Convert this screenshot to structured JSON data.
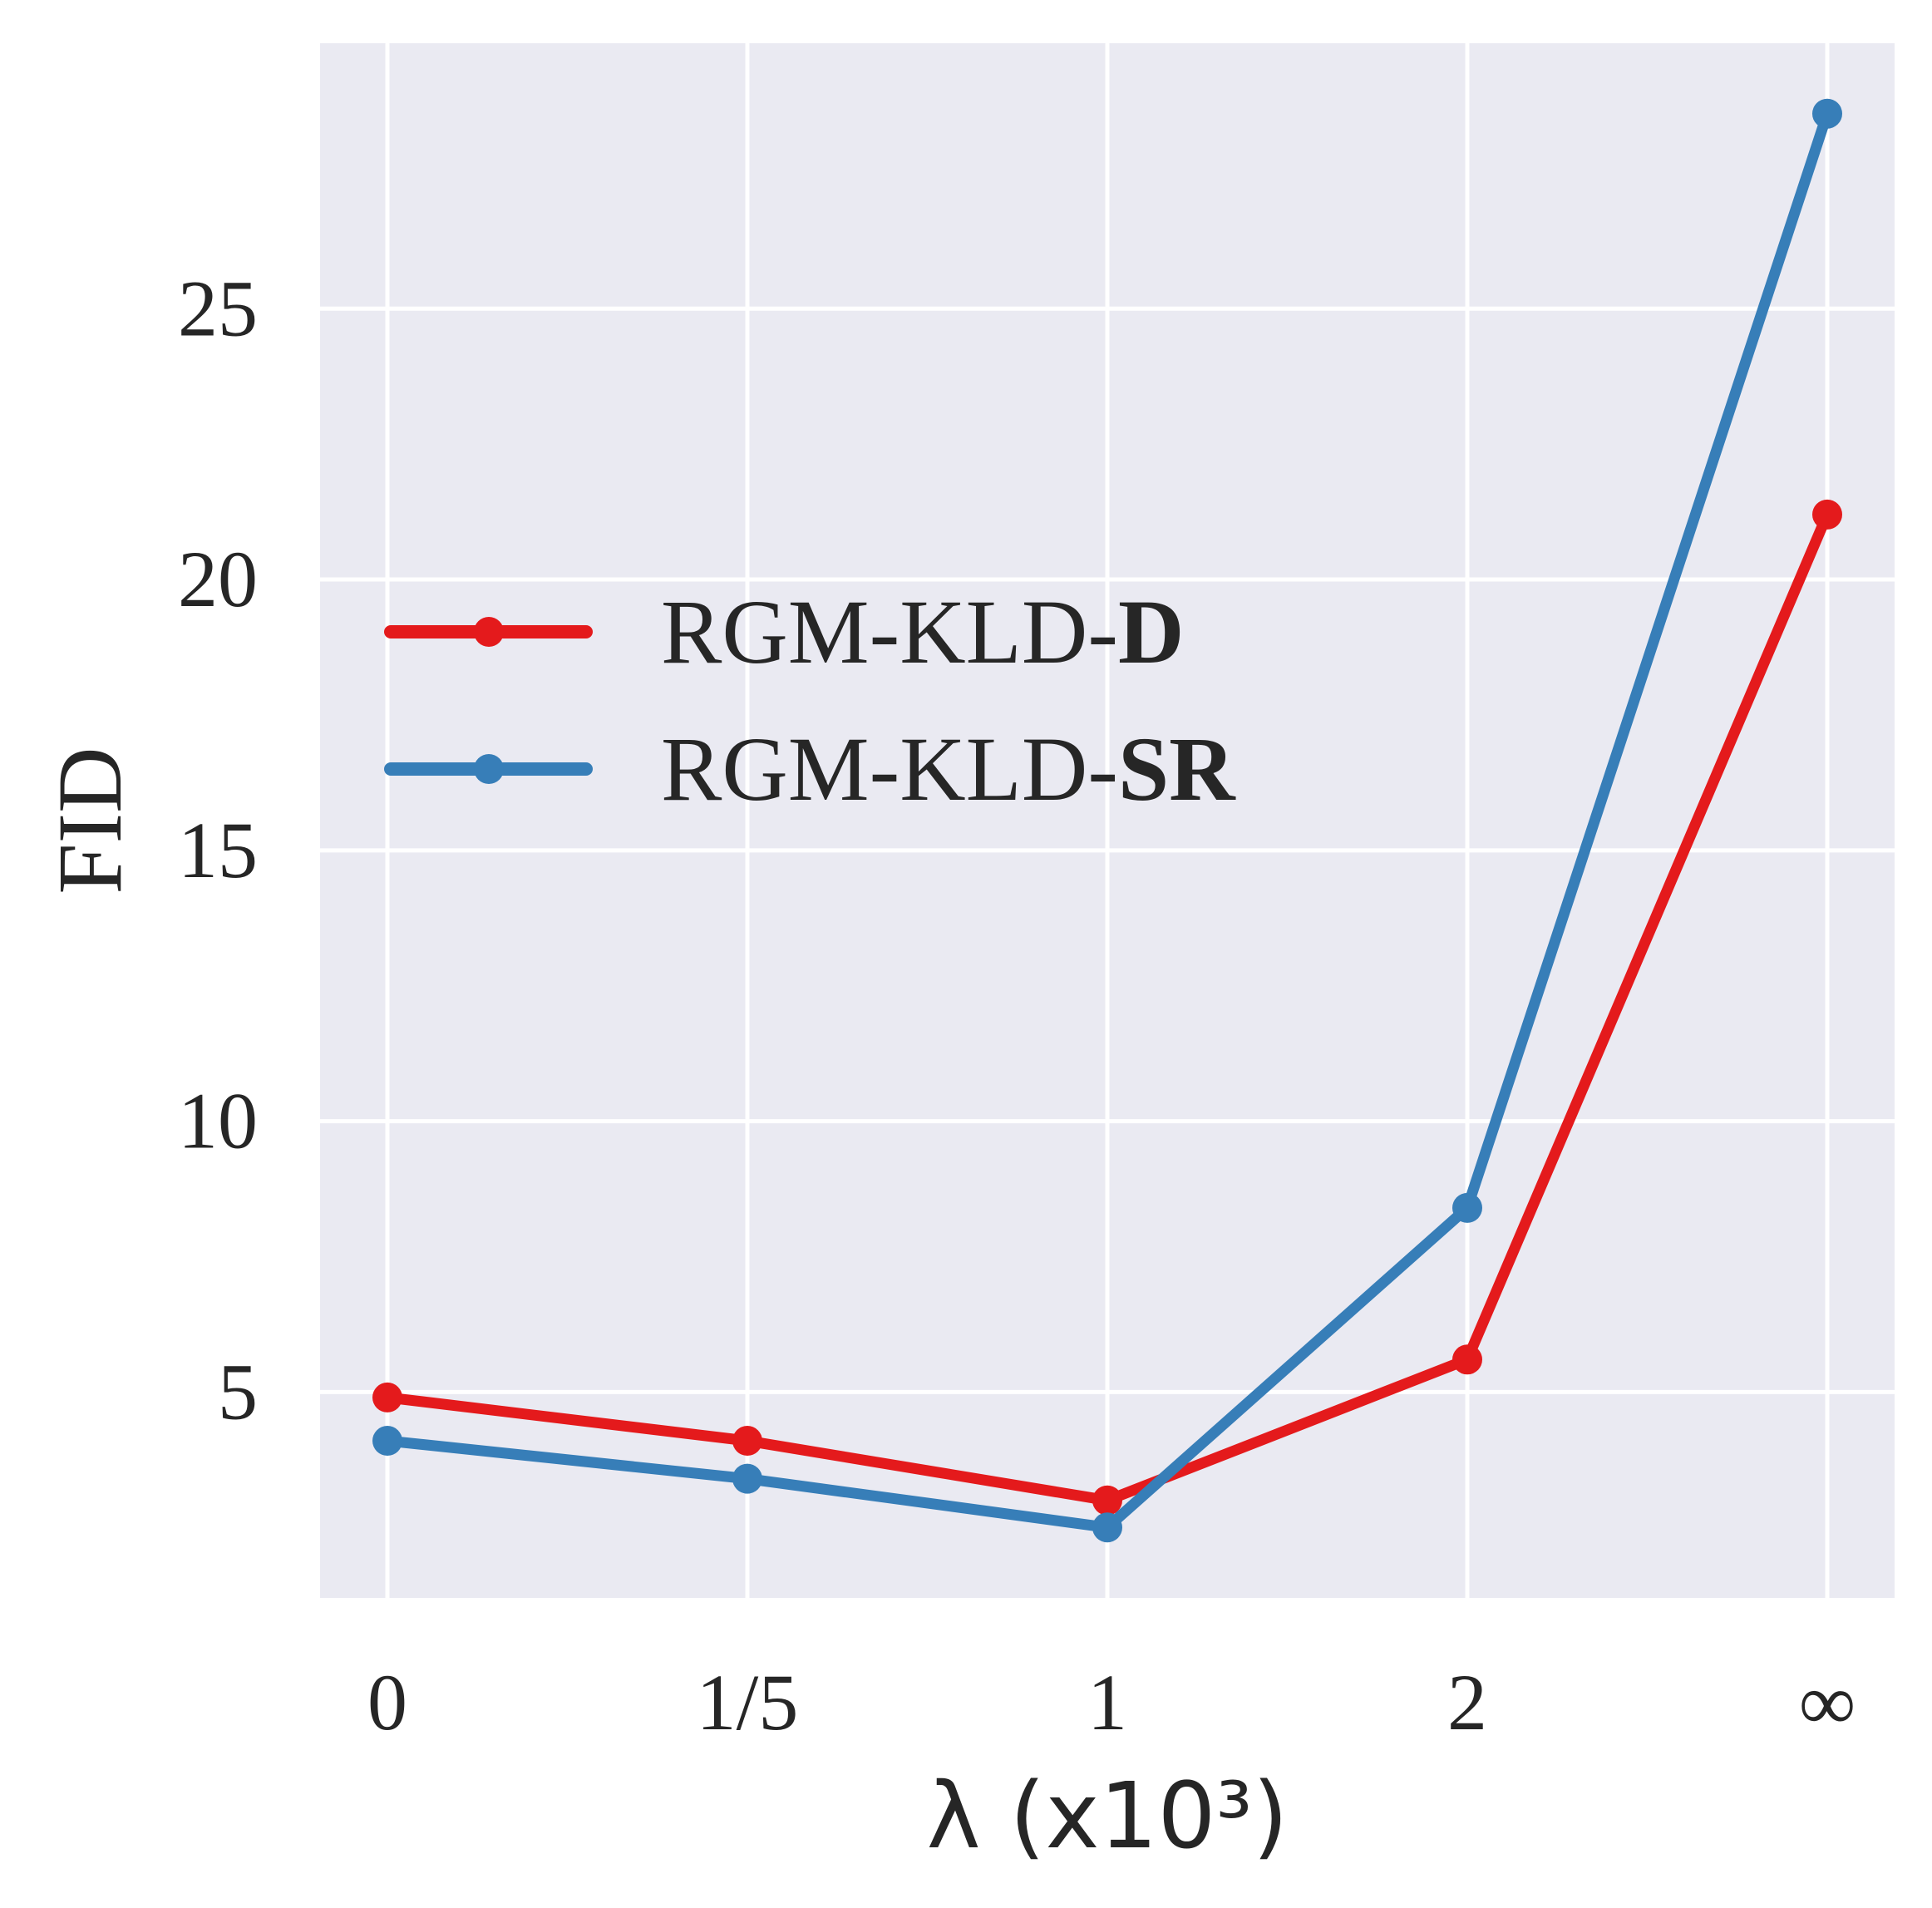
{
  "chart_data": {
    "type": "line",
    "categories": [
      "0",
      "1/5",
      "1",
      "2",
      "∞"
    ],
    "series": [
      {
        "name": "RGM-KLD-D",
        "name_prefix": "RGM-KLD-",
        "name_suffix": "D",
        "color": "#e41a1c",
        "values": [
          4.9,
          4.1,
          3.0,
          5.6,
          21.2
        ]
      },
      {
        "name": "RGM-KLD-SR",
        "name_prefix": "RGM-KLD-",
        "name_suffix": "SR",
        "color": "#377eb8",
        "values": [
          4.1,
          3.4,
          2.5,
          8.4,
          28.6
        ]
      }
    ],
    "y_ticks": [
      5,
      10,
      15,
      20,
      25
    ],
    "ylim": [
      1.2,
      29.9
    ],
    "xlabel": "λ (x10³)",
    "ylabel": "FID",
    "grid": true,
    "legend_position": "upper-left",
    "background_color": "#eaeaf2",
    "grid_color": "#ffffff"
  }
}
